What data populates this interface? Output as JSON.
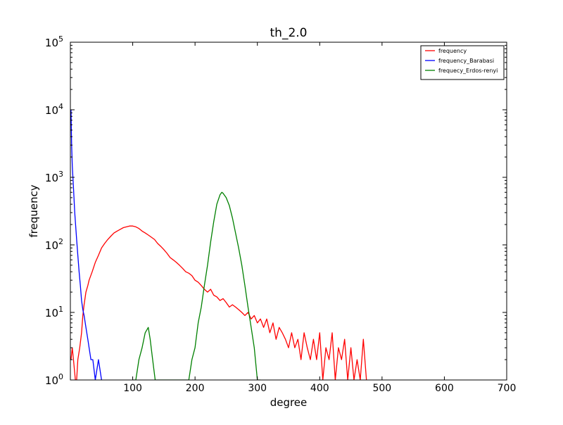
{
  "chart_data": {
    "type": "line",
    "title": "th_2.0",
    "xlabel": "degree",
    "ylabel": "frequency",
    "xlim": [
      0,
      700
    ],
    "ylim": [
      1,
      100000
    ],
    "yscale": "log",
    "x_ticks": [
      100,
      200,
      300,
      400,
      500,
      600,
      700
    ],
    "y_ticks": [
      {
        "value": 1,
        "base": "10",
        "exp": "0"
      },
      {
        "value": 10,
        "base": "10",
        "exp": "1"
      },
      {
        "value": 100,
        "base": "10",
        "exp": "2"
      },
      {
        "value": 1000,
        "base": "10",
        "exp": "3"
      },
      {
        "value": 10000,
        "base": "10",
        "exp": "4"
      },
      {
        "value": 100000,
        "base": "10",
        "exp": "5"
      }
    ],
    "grid": false,
    "legend_position": "top-right",
    "series": [
      {
        "name": "frequency",
        "color": "#ff0000",
        "points": [
          [
            1,
            2
          ],
          [
            3,
            3
          ],
          [
            5,
            2
          ],
          [
            8,
            1
          ],
          [
            10,
            1
          ],
          [
            12,
            2
          ],
          [
            15,
            3
          ],
          [
            18,
            5
          ],
          [
            20,
            9
          ],
          [
            22,
            13
          ],
          [
            25,
            20
          ],
          [
            28,
            25
          ],
          [
            30,
            30
          ],
          [
            35,
            40
          ],
          [
            40,
            55
          ],
          [
            45,
            70
          ],
          [
            50,
            90
          ],
          [
            55,
            105
          ],
          [
            60,
            120
          ],
          [
            65,
            135
          ],
          [
            70,
            150
          ],
          [
            75,
            160
          ],
          [
            80,
            170
          ],
          [
            85,
            180
          ],
          [
            90,
            185
          ],
          [
            95,
            190
          ],
          [
            100,
            190
          ],
          [
            105,
            185
          ],
          [
            110,
            175
          ],
          [
            115,
            160
          ],
          [
            120,
            150
          ],
          [
            125,
            140
          ],
          [
            130,
            130
          ],
          [
            135,
            120
          ],
          [
            140,
            105
          ],
          [
            145,
            95
          ],
          [
            150,
            85
          ],
          [
            155,
            75
          ],
          [
            160,
            65
          ],
          [
            165,
            60
          ],
          [
            170,
            55
          ],
          [
            175,
            50
          ],
          [
            180,
            45
          ],
          [
            185,
            40
          ],
          [
            190,
            38
          ],
          [
            195,
            35
          ],
          [
            200,
            30
          ],
          [
            205,
            28
          ],
          [
            210,
            25
          ],
          [
            215,
            22
          ],
          [
            220,
            20
          ],
          [
            225,
            22
          ],
          [
            230,
            18
          ],
          [
            235,
            17
          ],
          [
            240,
            15
          ],
          [
            245,
            16
          ],
          [
            250,
            14
          ],
          [
            255,
            12
          ],
          [
            260,
            13
          ],
          [
            265,
            12
          ],
          [
            270,
            11
          ],
          [
            275,
            10
          ],
          [
            280,
            9
          ],
          [
            285,
            10
          ],
          [
            290,
            8
          ],
          [
            295,
            9
          ],
          [
            300,
            7
          ],
          [
            305,
            8
          ],
          [
            310,
            6
          ],
          [
            315,
            8
          ],
          [
            320,
            5
          ],
          [
            325,
            7
          ],
          [
            330,
            4
          ],
          [
            335,
            6
          ],
          [
            340,
            5
          ],
          [
            345,
            4
          ],
          [
            350,
            3
          ],
          [
            355,
            5
          ],
          [
            360,
            3
          ],
          [
            365,
            4
          ],
          [
            370,
            2
          ],
          [
            375,
            5
          ],
          [
            380,
            3
          ],
          [
            385,
            2
          ],
          [
            390,
            4
          ],
          [
            395,
            2
          ],
          [
            400,
            5
          ],
          [
            405,
            1
          ],
          [
            410,
            3
          ],
          [
            415,
            2
          ],
          [
            420,
            5
          ],
          [
            425,
            1
          ],
          [
            430,
            3
          ],
          [
            435,
            2
          ],
          [
            440,
            4
          ],
          [
            445,
            1
          ],
          [
            450,
            3
          ],
          [
            455,
            1
          ],
          [
            460,
            2
          ],
          [
            465,
            1
          ],
          [
            470,
            4
          ],
          [
            475,
            1
          ]
        ]
      },
      {
        "name": "frequency_Barabasi",
        "color": "#0000ff",
        "points": [
          [
            1,
            10000
          ],
          [
            2,
            3000
          ],
          [
            3,
            1500
          ],
          [
            5,
            700
          ],
          [
            7,
            300
          ],
          [
            10,
            120
          ],
          [
            12,
            70
          ],
          [
            14,
            40
          ],
          [
            16,
            25
          ],
          [
            18,
            15
          ],
          [
            20,
            11
          ],
          [
            22,
            9
          ],
          [
            25,
            6
          ],
          [
            28,
            4
          ],
          [
            30,
            3
          ],
          [
            33,
            2
          ],
          [
            36,
            2
          ],
          [
            40,
            1
          ],
          [
            45,
            2
          ],
          [
            50,
            1
          ]
        ]
      },
      {
        "name": "frequecy_Erdos-renyi",
        "color": "#008000",
        "points": [
          [
            100,
            1
          ],
          [
            105,
            1
          ],
          [
            110,
            2
          ],
          [
            115,
            3
          ],
          [
            120,
            5
          ],
          [
            125,
            6
          ],
          [
            128,
            4
          ],
          [
            132,
            2
          ],
          [
            136,
            1
          ],
          [
            150,
            1
          ],
          [
            190,
            1
          ],
          [
            195,
            2
          ],
          [
            200,
            3
          ],
          [
            205,
            7
          ],
          [
            210,
            12
          ],
          [
            215,
            25
          ],
          [
            220,
            50
          ],
          [
            225,
            110
          ],
          [
            230,
            220
          ],
          [
            235,
            400
          ],
          [
            240,
            550
          ],
          [
            243,
            600
          ],
          [
            245,
            580
          ],
          [
            250,
            500
          ],
          [
            255,
            380
          ],
          [
            260,
            250
          ],
          [
            265,
            150
          ],
          [
            270,
            90
          ],
          [
            275,
            50
          ],
          [
            280,
            25
          ],
          [
            285,
            12
          ],
          [
            290,
            6
          ],
          [
            295,
            3
          ],
          [
            300,
            1
          ],
          [
            305,
            1
          ]
        ]
      }
    ]
  }
}
